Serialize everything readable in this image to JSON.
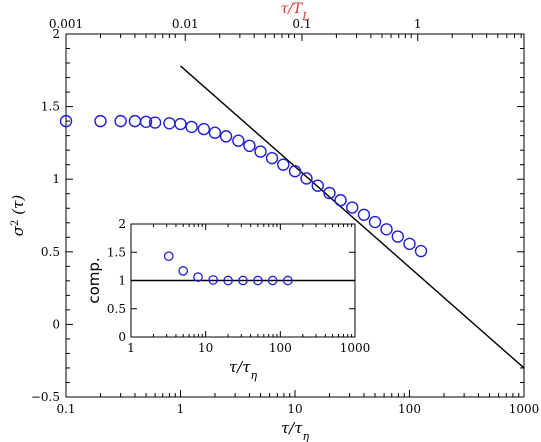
{
  "chart_data": [
    {
      "type": "scatter",
      "xlabel": "τ/τ_η",
      "ylabel": "σ² (τ)",
      "top_xlabel": "τ/T_L",
      "xscale": "log",
      "xlim": [
        0.1,
        1000
      ],
      "ylim": [
        -0.5,
        2
      ],
      "xticks": [
        "0.1",
        "1",
        "10",
        "100",
        "1000"
      ],
      "yticks": [
        "−0.5",
        "0",
        "0.5",
        "1",
        "1.5",
        "2"
      ],
      "top_xticks": [
        {
          "label": "0.001",
          "tau_eta": 0.1
        },
        {
          "label": "0.01",
          "tau_eta": 1.1
        },
        {
          "label": "0.1",
          "tau_eta": 11.5
        },
        {
          "label": "1",
          "tau_eta": 118
        }
      ],
      "colors": {
        "markers": "#1f1fd6",
        "top_axis_label": "#e03030",
        "line": "#000000"
      },
      "series": [
        {
          "marker": "open-circle",
          "x": [
            0.1,
            0.2,
            0.3,
            0.4,
            0.5,
            0.6,
            0.8,
            1.0,
            1.25,
            1.6,
            2.0,
            2.5,
            3.2,
            4.0,
            5.0,
            6.3,
            7.9,
            10,
            12.6,
            15.8,
            20,
            25,
            31.6,
            40,
            50,
            63,
            79,
            100,
            126
          ],
          "y": [
            1.4,
            1.4,
            1.4,
            1.4,
            1.395,
            1.39,
            1.385,
            1.38,
            1.36,
            1.345,
            1.32,
            1.295,
            1.265,
            1.23,
            1.19,
            1.145,
            1.1,
            1.055,
            1.005,
            0.955,
            0.905,
            0.855,
            0.805,
            0.755,
            0.705,
            0.655,
            0.605,
            0.555,
            0.505
          ]
        },
        {
          "marker": "line",
          "x": [
            1.0,
            1000
          ],
          "y": [
            1.78,
            -0.3
          ]
        }
      ]
    },
    {
      "type": "scatter",
      "role": "inset",
      "xlabel": "τ/τ_η",
      "ylabel": "comp.",
      "xscale": "log",
      "xlim": [
        1,
        1000
      ],
      "ylim": [
        0,
        2
      ],
      "xticks": [
        "1",
        "10",
        "100",
        "1000"
      ],
      "yticks": [
        "0",
        "0.5",
        "1",
        "1.5",
        "2"
      ],
      "series": [
        {
          "marker": "open-circle",
          "x": [
            3.2,
            5.0,
            7.9,
            12.6,
            20,
            31.6,
            50,
            79,
            126
          ],
          "y": [
            1.43,
            1.17,
            1.06,
            1.01,
            1.0,
            1.0,
            1.0,
            1.0,
            1.0
          ]
        },
        {
          "marker": "line",
          "x": [
            1,
            1000
          ],
          "y": [
            1,
            1
          ]
        }
      ]
    }
  ]
}
